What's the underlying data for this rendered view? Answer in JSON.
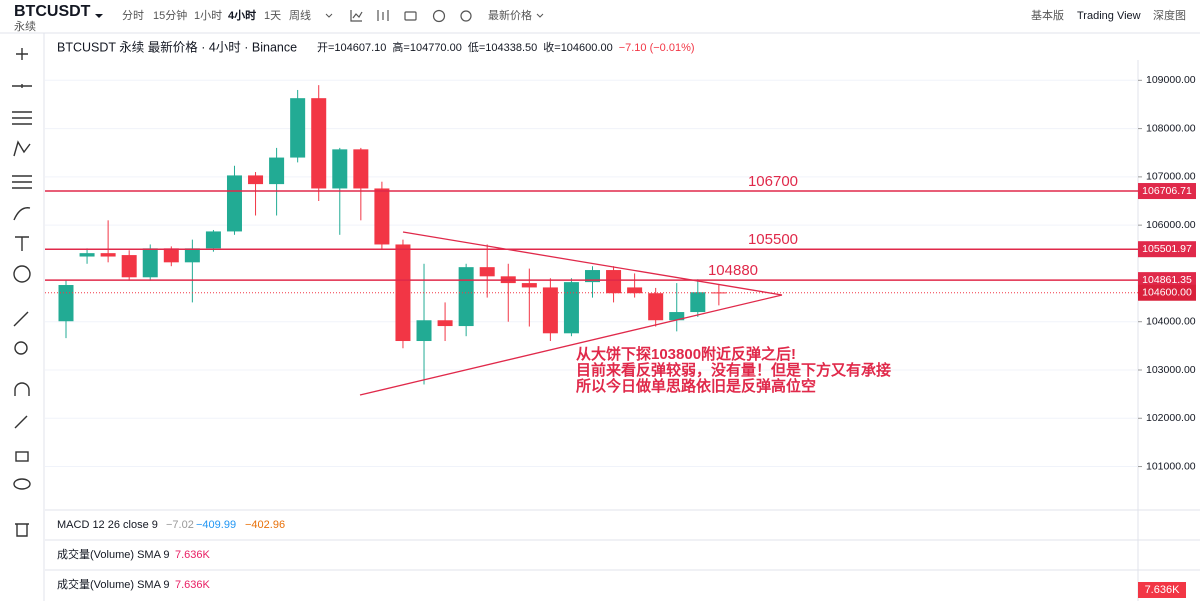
{
  "toolbar": {
    "symbol": "BTCUSDT",
    "contract": "永续",
    "intervals": [
      "分时",
      "15分钟",
      "1小时",
      "4小时",
      "1天",
      "周线"
    ],
    "price_type": "最新价格",
    "views": [
      "基本版",
      "Trading View",
      "深度图"
    ]
  },
  "header": {
    "title": "BTCUSDT 永续 最新价格 · 4小时 · Binance",
    "ohlc": [
      "开=104607.10",
      "高=104770.00",
      "低=104338.50",
      "收=104600.00",
      "−7.10 (−0.01%)"
    ]
  },
  "chart_data": {
    "type": "candlestick",
    "categories": [
      null,
      null,
      null,
      null,
      null,
      null,
      null,
      null,
      null,
      null,
      null,
      null,
      null,
      null,
      null,
      null,
      null,
      null,
      null,
      null,
      null,
      null,
      null,
      null,
      null,
      null,
      null,
      null,
      null,
      null,
      null,
      null
    ],
    "open": [
      104010,
      105350,
      105420,
      105380,
      104920,
      105520,
      105230,
      105520,
      105870,
      107030,
      106850,
      107400,
      108630,
      106760,
      107570,
      106760,
      105600,
      103600,
      104030,
      103910,
      105130,
      104940,
      104800,
      104710,
      103760,
      104820,
      105070,
      104710,
      104590,
      104030,
      104200,
      104607.1
    ],
    "high": [
      104860,
      105520,
      106100,
      105480,
      105600,
      105560,
      105700,
      105900,
      107230,
      107100,
      107600,
      108800,
      108900,
      107600,
      107600,
      106900,
      105700,
      105200,
      104400,
      105200,
      105600,
      105200,
      105100,
      104900,
      104900,
      105150,
      105150,
      105000,
      104700,
      104800,
      104880,
      104770
    ],
    "low": [
      103660,
      105200,
      105230,
      104850,
      104850,
      105150,
      104400,
      105450,
      105800,
      106200,
      106200,
      107300,
      106500,
      105800,
      106100,
      105500,
      103450,
      102700,
      103600,
      103700,
      104500,
      104000,
      103900,
      103600,
      103700,
      104500,
      104400,
      104500,
      103900,
      103800,
      104100,
      104338.5
    ],
    "close": [
      104760,
      105420,
      105350,
      104920,
      105520,
      105230,
      105520,
      105870,
      107030,
      106850,
      107400,
      108630,
      106760,
      107570,
      106760,
      105600,
      103600,
      104030,
      103910,
      105130,
      104940,
      104800,
      104710,
      103760,
      104820,
      105070,
      104590,
      104590,
      104030,
      104200,
      104610,
      104600
    ],
    "up_color": "#22ab94",
    "down_color": "#f23645",
    "ylim": [
      100100,
      109400
    ],
    "yticks": [
      {
        "value": 109000,
        "label": "109000.00"
      },
      {
        "value": 108000,
        "label": "108000.00"
      },
      {
        "value": 107000,
        "label": "107000.00"
      },
      {
        "value": 106000,
        "label": "106000.00"
      },
      {
        "value": 104000,
        "label": "104000.00"
      },
      {
        "value": 103000,
        "label": "103000.00"
      },
      {
        "value": 102000,
        "label": "102000.00"
      },
      {
        "value": 101000,
        "label": "101000.00"
      }
    ],
    "levels": [
      {
        "value": 106706.71,
        "label": "106706.71",
        "annotation": "106700"
      },
      {
        "value": 105501.97,
        "label": "105501.97",
        "annotation": "105500"
      },
      {
        "value": 104861.35,
        "label": "104861.35",
        "annotation": "104880"
      }
    ],
    "last_price": {
      "value": 104600,
      "label": "104600.00"
    },
    "level_color": "#e0294a",
    "annotations": [
      "从大饼下探103800附近反弹之后!",
      "目前来看反弹较弱，没有量！但是下方又有承接",
      "所以今日做单思路依旧是反弹高位空"
    ]
  },
  "indicators": {
    "macd": {
      "label": "MACD 12 26 close 9",
      "values": [
        "−7.02",
        "−409.99",
        "−402.96"
      ]
    },
    "volume": [
      {
        "label": "成交量(Volume) SMA 9",
        "value": "7.636K"
      },
      {
        "label": "成交量(Volume) SMA 9",
        "value": "7.636K"
      }
    ],
    "volume_axis_label": "7.636K"
  }
}
